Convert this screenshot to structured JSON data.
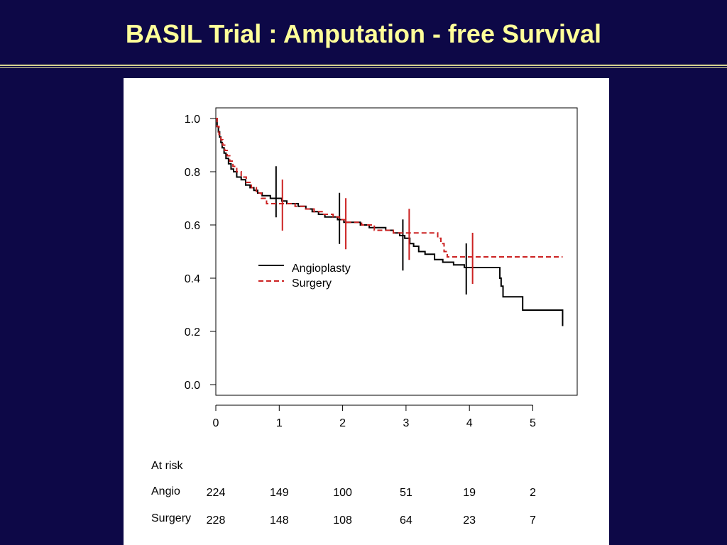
{
  "slide": {
    "title": "BASIL Trial : Amputation - free Survival"
  },
  "chart_data": {
    "type": "line",
    "title": "",
    "xlabel": "",
    "ylabel": "",
    "xlim": [
      0,
      5.7
    ],
    "ylim": [
      -0.04,
      1.04
    ],
    "xticks": [
      0,
      1,
      2,
      3,
      4,
      5
    ],
    "yticks": [
      0.0,
      0.2,
      0.4,
      0.6,
      0.8,
      1.0
    ],
    "ytick_labels": [
      "0.0",
      "0.2",
      "0.4",
      "0.6",
      "0.8",
      "1.0"
    ],
    "xtick_labels": [
      "0",
      "1",
      "2",
      "3",
      "4",
      "5"
    ],
    "grid": false,
    "legend_position": "center-left",
    "series": [
      {
        "name": "Angioplasty",
        "color": "#000000",
        "style": "solid",
        "step_x": [
          0,
          0.02,
          0.04,
          0.06,
          0.08,
          0.1,
          0.13,
          0.16,
          0.2,
          0.24,
          0.28,
          0.33,
          0.4,
          0.47,
          0.54,
          0.6,
          0.66,
          0.73,
          0.8,
          0.86,
          0.95,
          1.04,
          1.12,
          1.2,
          1.3,
          1.42,
          1.52,
          1.62,
          1.72,
          1.82,
          1.92,
          2.02,
          2.15,
          2.28,
          2.42,
          2.55,
          2.68,
          2.8,
          2.9,
          2.98,
          3.06,
          3.12,
          3.2,
          3.3,
          3.45,
          3.58,
          3.75,
          3.92,
          4.1,
          4.28,
          4.48,
          4.5,
          4.53,
          4.82,
          4.84,
          5.47
        ],
        "step_y": [
          1.0,
          0.97,
          0.95,
          0.93,
          0.91,
          0.89,
          0.87,
          0.85,
          0.83,
          0.81,
          0.8,
          0.78,
          0.77,
          0.75,
          0.74,
          0.73,
          0.72,
          0.71,
          0.71,
          0.7,
          0.7,
          0.69,
          0.68,
          0.68,
          0.67,
          0.66,
          0.65,
          0.64,
          0.63,
          0.63,
          0.62,
          0.61,
          0.61,
          0.6,
          0.59,
          0.59,
          0.58,
          0.57,
          0.56,
          0.55,
          0.53,
          0.52,
          0.5,
          0.49,
          0.47,
          0.46,
          0.45,
          0.44,
          0.44,
          0.44,
          0.4,
          0.37,
          0.33,
          0.33,
          0.28,
          0.22
        ],
        "step_end_x": 5.47,
        "censor_ticks": [
          {
            "x": 0.95,
            "y": 0.73
          },
          {
            "x": 1.95,
            "y": 0.63
          },
          {
            "x": 2.95,
            "y": 0.53
          },
          {
            "x": 3.95,
            "y": 0.44
          }
        ]
      },
      {
        "name": "Surgery",
        "color": "#cc2222",
        "style": "dashed",
        "step_x": [
          0,
          0.02,
          0.05,
          0.08,
          0.11,
          0.14,
          0.18,
          0.22,
          0.27,
          0.33,
          0.4,
          0.48,
          0.56,
          0.64,
          0.72,
          0.8,
          0.95,
          1.1,
          1.25,
          1.4,
          1.55,
          1.7,
          1.85,
          1.95,
          2.05,
          2.3,
          2.5,
          2.65,
          2.8,
          3.0,
          3.5,
          3.55,
          3.6,
          3.65,
          4.05,
          5.47
        ],
        "step_y": [
          1.0,
          0.97,
          0.94,
          0.92,
          0.9,
          0.88,
          0.86,
          0.84,
          0.82,
          0.8,
          0.78,
          0.76,
          0.74,
          0.72,
          0.7,
          0.68,
          0.68,
          0.68,
          0.67,
          0.66,
          0.65,
          0.64,
          0.63,
          0.62,
          0.61,
          0.6,
          0.58,
          0.58,
          0.57,
          0.57,
          0.55,
          0.53,
          0.5,
          0.48,
          0.48,
          0.48
        ],
        "step_end_x": 5.47,
        "censor_ticks": [
          {
            "x": 1.05,
            "y": 0.68
          },
          {
            "x": 2.05,
            "y": 0.61
          },
          {
            "x": 3.05,
            "y": 0.57
          },
          {
            "x": 4.05,
            "y": 0.48
          }
        ]
      }
    ],
    "at_risk": {
      "header": "At risk",
      "rows": [
        {
          "label": "Angio",
          "values": [
            "224",
            "149",
            "100",
            "51",
            "19",
            "2"
          ]
        },
        {
          "label": "Surgery",
          "values": [
            "228",
            "148",
            "108",
            "64",
            "23",
            "7"
          ]
        }
      ]
    }
  }
}
